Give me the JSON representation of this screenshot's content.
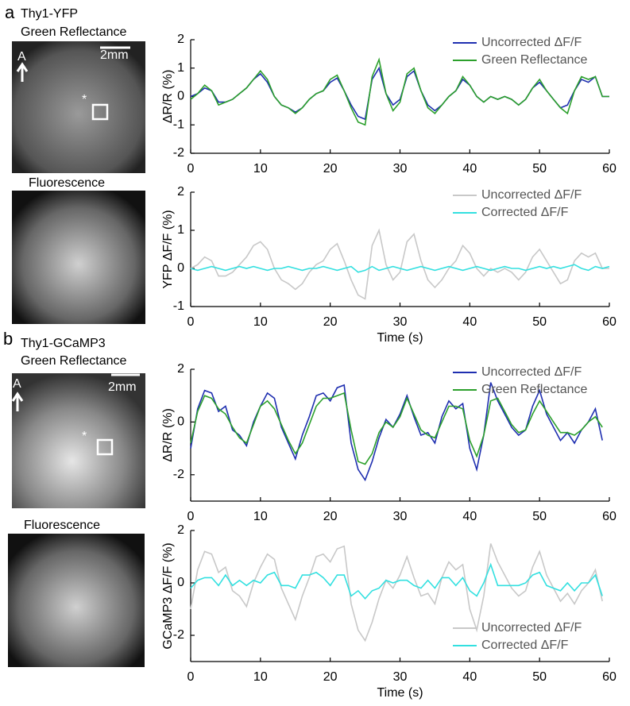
{
  "panels": [
    {
      "letter": "a",
      "name": "Thy1-YFP",
      "top_label": "Green Reflectance",
      "scale": "2mm",
      "anterior": "A",
      "marker": "*",
      "bottom_label": "Fluorescence"
    },
    {
      "letter": "b",
      "name": "Thy1-GCaMP3",
      "top_label": "Green Reflectance",
      "scale": "2mm",
      "anterior": "A",
      "marker": "*",
      "bottom_label": "Fluorescence"
    }
  ],
  "chart_data": [
    {
      "type": "line",
      "ylabel": "ΔR/R (%)",
      "legend": "upper right",
      "xlim": [
        0,
        60
      ],
      "ylim": [
        -2,
        2
      ],
      "xticks": [
        0,
        10,
        20,
        30,
        40,
        50,
        60
      ],
      "yticks": [
        -2,
        -1,
        0,
        1,
        2
      ],
      "x": [
        0,
        1,
        2,
        3,
        4,
        5,
        6,
        7,
        8,
        9,
        10,
        11,
        12,
        13,
        14,
        15,
        16,
        17,
        18,
        19,
        20,
        21,
        22,
        23,
        24,
        25,
        26,
        27,
        28,
        29,
        30,
        31,
        32,
        33,
        34,
        35,
        36,
        37,
        38,
        39,
        40,
        41,
        42,
        43,
        44,
        45,
        46,
        47,
        48,
        49,
        50,
        51,
        52,
        53,
        54,
        55,
        56,
        57,
        58,
        59,
        60
      ],
      "series": [
        {
          "name": "Uncorrected ΔF/F",
          "color": "#1f2fb0",
          "values": [
            0,
            0.1,
            0.3,
            0.2,
            -0.2,
            -0.2,
            -0.1,
            0.1,
            0.3,
            0.6,
            0.8,
            0.5,
            0,
            -0.3,
            -0.4,
            -0.55,
            -0.4,
            -0.1,
            0.1,
            0.2,
            0.5,
            0.65,
            0.2,
            -0.3,
            -0.7,
            -0.8,
            0.6,
            1.0,
            0.1,
            -0.3,
            -0.1,
            0.7,
            0.9,
            0.2,
            -0.3,
            -0.5,
            -0.3,
            0,
            0.2,
            0.6,
            0.4,
            0,
            -0.2,
            0,
            -0.1,
            0,
            -0.1,
            -0.3,
            -0.1,
            0.3,
            0.5,
            0.2,
            -0.1,
            -0.4,
            -0.3,
            0.2,
            0.6,
            0.5,
            0.7,
            0,
            0
          ]
        },
        {
          "name": "Green Reflectance",
          "color": "#2ca02c",
          "values": [
            -0.1,
            0.1,
            0.4,
            0.2,
            -0.3,
            -0.2,
            -0.1,
            0.1,
            0.3,
            0.6,
            0.9,
            0.6,
            0,
            -0.3,
            -0.4,
            -0.6,
            -0.4,
            -0.1,
            0.1,
            0.2,
            0.6,
            0.75,
            0.2,
            -0.4,
            -0.9,
            -1.0,
            0.7,
            1.3,
            0.1,
            -0.5,
            -0.2,
            0.8,
            1.0,
            0.2,
            -0.4,
            -0.6,
            -0.3,
            0,
            0.2,
            0.7,
            0.4,
            0,
            -0.2,
            0,
            -0.1,
            0,
            -0.1,
            -0.3,
            -0.1,
            0.3,
            0.6,
            0.2,
            -0.1,
            -0.4,
            -0.6,
            0.2,
            0.7,
            0.6,
            0.7,
            0,
            0
          ]
        }
      ]
    },
    {
      "type": "line",
      "ylabel": "YFP ΔF/F (%)",
      "xlabel": "Time (s)",
      "legend": "upper right",
      "xlim": [
        0,
        60
      ],
      "ylim": [
        -1,
        2
      ],
      "xticks": [
        0,
        10,
        20,
        30,
        40,
        50,
        60
      ],
      "yticks": [
        -1,
        0,
        1,
        2
      ],
      "x": [
        0,
        1,
        2,
        3,
        4,
        5,
        6,
        7,
        8,
        9,
        10,
        11,
        12,
        13,
        14,
        15,
        16,
        17,
        18,
        19,
        20,
        21,
        22,
        23,
        24,
        25,
        26,
        27,
        28,
        29,
        30,
        31,
        32,
        33,
        34,
        35,
        36,
        37,
        38,
        39,
        40,
        41,
        42,
        43,
        44,
        45,
        46,
        47,
        48,
        49,
        50,
        51,
        52,
        53,
        54,
        55,
        56,
        57,
        58,
        59,
        60
      ],
      "series": [
        {
          "name": "Uncorrected ΔF/F",
          "color": "#c8c8c8",
          "values": [
            0,
            0.1,
            0.3,
            0.2,
            -0.2,
            -0.2,
            -0.1,
            0.1,
            0.3,
            0.6,
            0.7,
            0.5,
            0,
            -0.3,
            -0.4,
            -0.55,
            -0.4,
            -0.1,
            0.1,
            0.2,
            0.5,
            0.65,
            0.2,
            -0.3,
            -0.7,
            -0.8,
            0.6,
            1.0,
            0.1,
            -0.3,
            -0.1,
            0.7,
            0.9,
            0.2,
            -0.3,
            -0.5,
            -0.3,
            0,
            0.2,
            0.6,
            0.4,
            0,
            -0.2,
            0,
            -0.1,
            0,
            -0.1,
            -0.3,
            -0.1,
            0.3,
            0.5,
            0.2,
            -0.1,
            -0.4,
            -0.3,
            0.2,
            0.4,
            0.3,
            0.4,
            0,
            0
          ]
        },
        {
          "name": "Corrected ΔF/F",
          "color": "#33e0e0",
          "values": [
            0,
            -0.05,
            0,
            0.05,
            0,
            -0.05,
            0,
            0.05,
            0,
            0.05,
            0,
            -0.05,
            0,
            0,
            0.05,
            0,
            -0.05,
            0,
            0,
            0.05,
            0,
            -0.05,
            0,
            0.05,
            -0.1,
            -0.05,
            0.05,
            -0.05,
            0,
            0.05,
            0,
            -0.05,
            0,
            0.05,
            0,
            -0.05,
            0,
            0.05,
            0,
            -0.05,
            0,
            0.05,
            0,
            -0.05,
            0,
            0.05,
            0,
            0,
            -0.05,
            0,
            0.05,
            0,
            0.05,
            0,
            0.05,
            0.1,
            0,
            -0.05,
            0.05,
            0,
            0.05
          ]
        }
      ]
    },
    {
      "type": "line",
      "ylabel": "ΔR/R (%)",
      "legend": "upper right",
      "xlim": [
        0,
        60
      ],
      "ylim": [
        -3,
        2
      ],
      "xticks": [
        0,
        10,
        20,
        30,
        40,
        50,
        60
      ],
      "yticks": [
        -2,
        0,
        2
      ],
      "x": [
        0,
        1,
        2,
        3,
        4,
        5,
        6,
        7,
        8,
        9,
        10,
        11,
        12,
        13,
        14,
        15,
        16,
        17,
        18,
        19,
        20,
        21,
        22,
        23,
        24,
        25,
        26,
        27,
        28,
        29,
        30,
        31,
        32,
        33,
        34,
        35,
        36,
        37,
        38,
        39,
        40,
        41,
        42,
        43,
        44,
        45,
        46,
        47,
        48,
        49,
        50,
        51,
        52,
        53,
        54,
        55,
        56,
        57,
        58,
        59
      ],
      "series": [
        {
          "name": "Uncorrected ΔF/F",
          "color": "#1f2fb0",
          "values": [
            -1,
            0.5,
            1.2,
            1.1,
            0.4,
            0.6,
            -0.3,
            -0.5,
            -0.9,
            0,
            0.6,
            1.1,
            0.9,
            -0.2,
            -0.8,
            -1.4,
            -0.5,
            0.2,
            1.0,
            1.1,
            0.8,
            1.3,
            1.4,
            -0.8,
            -1.8,
            -2.2,
            -1.5,
            -0.6,
            0.1,
            -0.2,
            0.3,
            1.0,
            0.2,
            -0.5,
            -0.4,
            -0.8,
            0.2,
            0.8,
            0.5,
            0.7,
            -1.0,
            -1.8,
            -0.5,
            1.5,
            0.8,
            0.3,
            -0.2,
            -0.5,
            -0.3,
            0.6,
            1.2,
            0.3,
            -0.2,
            -0.7,
            -0.4,
            -0.8,
            -0.3,
            0,
            0.5,
            -0.7
          ]
        },
        {
          "name": "Green Reflectance",
          "color": "#2ca02c",
          "values": [
            -0.8,
            0.4,
            1.0,
            0.9,
            0.5,
            0.3,
            -0.2,
            -0.6,
            -0.8,
            -0.1,
            0.6,
            0.8,
            0.5,
            -0.1,
            -0.7,
            -1.2,
            -0.8,
            -0.1,
            0.6,
            0.9,
            0.9,
            1.0,
            1.1,
            -0.3,
            -1.5,
            -1.6,
            -1.2,
            -0.4,
            0,
            -0.2,
            0.2,
            0.9,
            0.3,
            -0.3,
            -0.5,
            -0.6,
            0,
            0.6,
            0.6,
            0.5,
            -0.7,
            -1.3,
            -0.5,
            0.8,
            0.9,
            0.4,
            -0.1,
            -0.4,
            -0.3,
            0.3,
            0.8,
            0.4,
            0,
            -0.4,
            -0.4,
            -0.5,
            -0.3,
            0,
            0.2,
            -0.2
          ]
        }
      ]
    },
    {
      "type": "line",
      "ylabel": "GCaMP3 ΔF/F (%)",
      "xlabel": "Time (s)",
      "legend": "lower right",
      "xlim": [
        0,
        60
      ],
      "ylim": [
        -3,
        2
      ],
      "xticks": [
        0,
        10,
        20,
        30,
        40,
        50,
        60
      ],
      "yticks": [
        -2,
        0,
        2
      ],
      "x": [
        0,
        1,
        2,
        3,
        4,
        5,
        6,
        7,
        8,
        9,
        10,
        11,
        12,
        13,
        14,
        15,
        16,
        17,
        18,
        19,
        20,
        21,
        22,
        23,
        24,
        25,
        26,
        27,
        28,
        29,
        30,
        31,
        32,
        33,
        34,
        35,
        36,
        37,
        38,
        39,
        40,
        41,
        42,
        43,
        44,
        45,
        46,
        47,
        48,
        49,
        50,
        51,
        52,
        53,
        54,
        55,
        56,
        57,
        58,
        59
      ],
      "series": [
        {
          "name": "Uncorrected ΔF/F",
          "color": "#c8c8c8",
          "values": [
            -1,
            0.5,
            1.2,
            1.1,
            0.4,
            0.6,
            -0.3,
            -0.5,
            -0.9,
            0,
            0.6,
            1.1,
            0.9,
            -0.2,
            -0.8,
            -1.4,
            -0.5,
            0.2,
            1.0,
            1.1,
            0.8,
            1.3,
            1.4,
            -0.8,
            -1.8,
            -2.2,
            -1.5,
            -0.6,
            0.1,
            -0.2,
            0.3,
            1.0,
            0.2,
            -0.5,
            -0.4,
            -0.8,
            0.2,
            0.8,
            0.5,
            0.7,
            -1.0,
            -1.8,
            -0.5,
            1.5,
            0.8,
            0.3,
            -0.2,
            -0.5,
            -0.3,
            0.6,
            1.2,
            0.3,
            -0.2,
            -0.7,
            -0.4,
            -0.8,
            -0.3,
            0,
            0.5,
            -0.7
          ]
        },
        {
          "name": "Corrected ΔF/F",
          "color": "#33e0e0",
          "values": [
            -0.2,
            0.1,
            0.2,
            0.2,
            -0.1,
            0.3,
            -0.1,
            0.1,
            -0.1,
            0.1,
            0,
            0.3,
            0.4,
            -0.1,
            -0.1,
            -0.2,
            0.3,
            0.3,
            0.4,
            0.2,
            -0.1,
            0.3,
            0.3,
            -0.5,
            -0.3,
            -0.6,
            -0.3,
            -0.2,
            0.1,
            0,
            0.1,
            0.1,
            -0.1,
            -0.2,
            0.1,
            -0.2,
            0.2,
            0.2,
            -0.1,
            0.2,
            -0.3,
            -0.5,
            0,
            0.7,
            -0.1,
            -0.1,
            -0.1,
            -0.1,
            0,
            0.3,
            0.4,
            -0.1,
            -0.2,
            -0.3,
            0,
            -0.3,
            0,
            0,
            0.3,
            -0.5
          ]
        }
      ]
    }
  ]
}
